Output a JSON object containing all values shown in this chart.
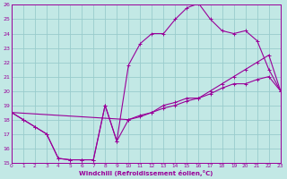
{
  "xlabel": "Windchill (Refroidissement éolien,°C)",
  "bg_color": "#c2e8e5",
  "line_color": "#990099",
  "grid_color": "#99cccc",
  "xlim": [
    0,
    23
  ],
  "ylim": [
    15,
    26
  ],
  "xticks": [
    0,
    1,
    2,
    3,
    4,
    5,
    6,
    7,
    8,
    9,
    10,
    11,
    12,
    13,
    14,
    15,
    16,
    17,
    18,
    19,
    20,
    21,
    22,
    23
  ],
  "yticks": [
    15,
    16,
    17,
    18,
    19,
    20,
    21,
    22,
    23,
    24,
    25,
    26
  ],
  "series1_x": [
    0,
    1,
    2,
    3,
    4,
    5,
    6,
    7,
    8,
    9,
    10,
    11,
    12,
    13,
    14,
    15,
    16,
    17,
    18,
    19,
    20,
    21,
    22,
    23
  ],
  "series1_y": [
    18.5,
    18.0,
    17.5,
    17.0,
    15.3,
    15.2,
    15.2,
    15.2,
    19.0,
    16.5,
    18.0,
    18.3,
    18.5,
    19.0,
    19.2,
    19.5,
    19.5,
    19.8,
    20.2,
    20.5,
    20.5,
    20.8,
    21.0,
    20.0
  ],
  "series2_x": [
    0,
    1,
    2,
    3,
    4,
    5,
    6,
    7,
    8,
    9,
    10,
    11,
    12,
    13,
    14,
    15,
    16,
    17,
    18,
    19,
    20,
    21,
    22,
    23
  ],
  "series2_y": [
    18.5,
    18.0,
    17.5,
    17.0,
    15.3,
    15.2,
    15.2,
    15.2,
    19.0,
    16.5,
    21.8,
    23.3,
    24.0,
    24.0,
    25.0,
    25.8,
    26.1,
    25.0,
    24.2,
    24.0,
    24.2,
    23.5,
    21.5,
    20.0
  ],
  "series3_x": [
    0,
    10,
    11,
    12,
    13,
    14,
    15,
    16,
    17,
    18,
    19,
    20,
    21,
    22,
    23
  ],
  "series3_y": [
    18.5,
    18.0,
    18.2,
    18.5,
    18.8,
    19.0,
    19.3,
    19.5,
    20.0,
    20.5,
    21.0,
    21.5,
    22.0,
    22.5,
    20.0
  ]
}
